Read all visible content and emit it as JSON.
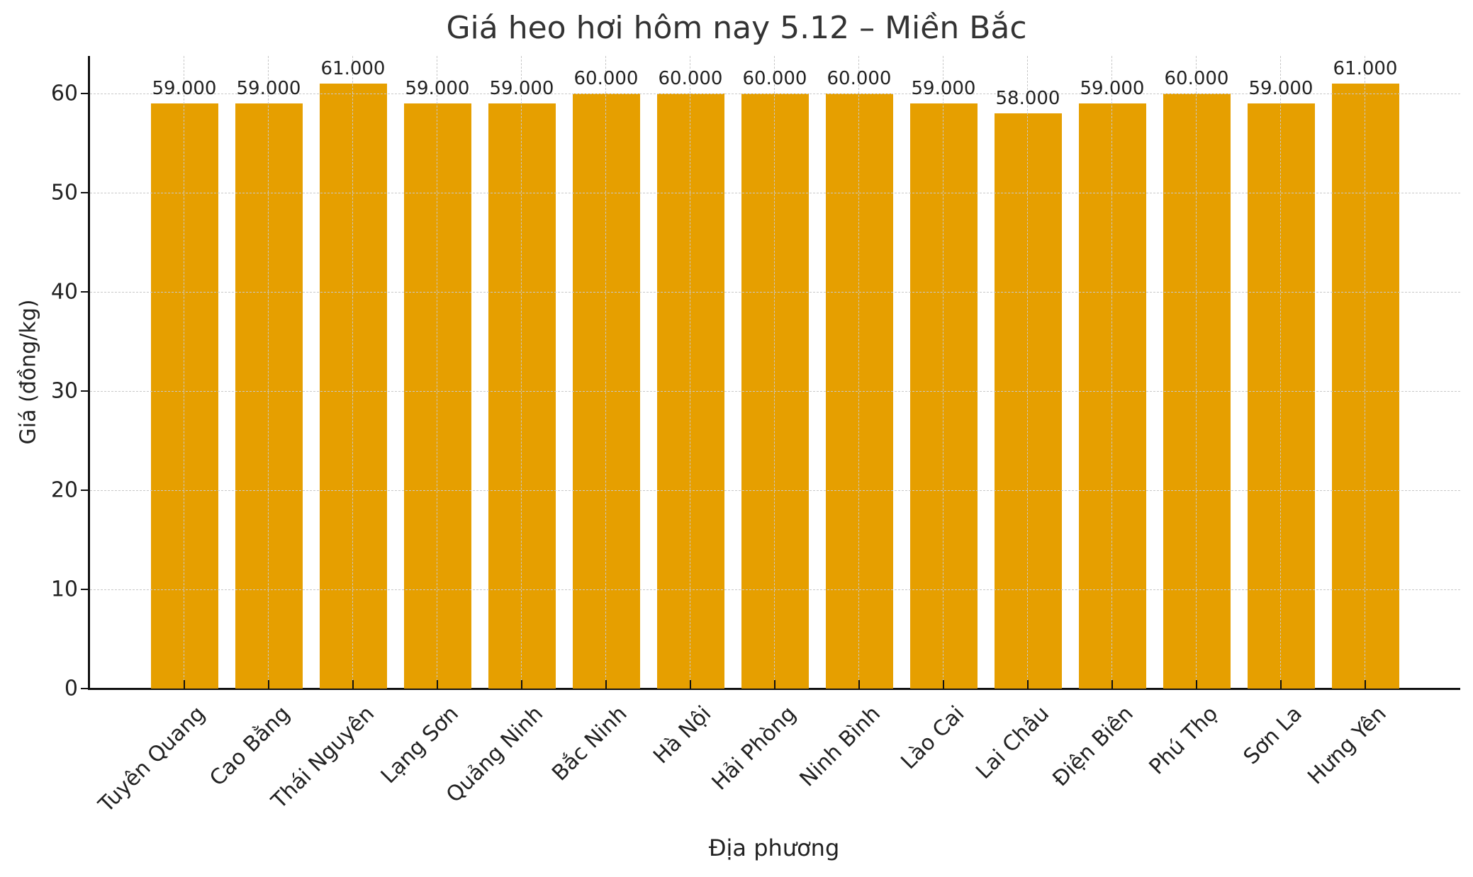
{
  "chart_data": {
    "type": "bar",
    "title": "Giá heo hơi hôm nay 5.12 – Miền Bắc",
    "xlabel": "Địa phương",
    "ylabel": "Giá (đồng/kg)",
    "ylim": [
      0,
      64
    ],
    "yticks": [
      0,
      10,
      20,
      30,
      40,
      50,
      60
    ],
    "grid": true,
    "bar_color": "#E69F00",
    "categories": [
      "Tuyên Quang",
      "Cao Bằng",
      "Thái Nguyên",
      "Lạng Sơn",
      "Quảng Ninh",
      "Bắc Ninh",
      "Hà Nội",
      "Hải Phòng",
      "Ninh Bình",
      "Lào Cai",
      "Lai Châu",
      "Điện Biên",
      "Phú Thọ",
      "Sơn La",
      "Hưng Yên"
    ],
    "values": [
      59,
      59,
      61,
      59,
      59,
      60,
      60,
      60,
      60,
      59,
      58,
      59,
      60,
      59,
      61
    ],
    "value_labels": [
      "59.000",
      "59.000",
      "61.000",
      "59.000",
      "59.000",
      "60.000",
      "60.000",
      "60.000",
      "60.000",
      "59.000",
      "58.000",
      "59.000",
      "60.000",
      "59.000",
      "61.000"
    ]
  }
}
